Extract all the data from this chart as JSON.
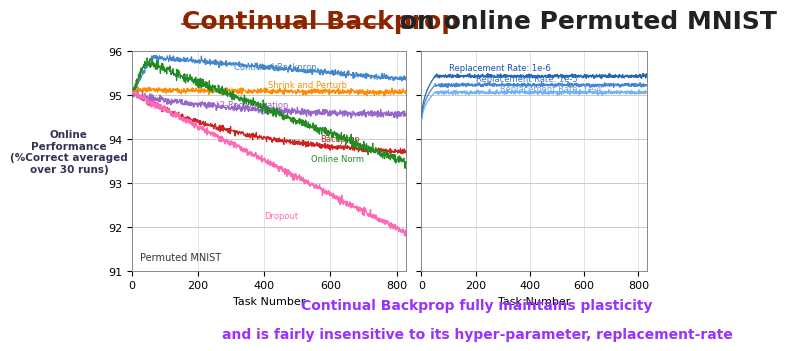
{
  "title_part1": "Continual Backprop",
  "title_part2": " on online Permuted MNIST",
  "title_color1": "#8B2500",
  "title_color2": "#222222",
  "title_fontsize": 18,
  "ylabel": "Online\nPerformance\n(%Correct averaged\nover 30 runs)",
  "xlabel": "Task Number",
  "ylim": [
    91,
    96
  ],
  "xlim": [
    0,
    830
  ],
  "yticks": [
    91,
    92,
    93,
    94,
    95,
    96
  ],
  "xticks": [
    0,
    200,
    400,
    600,
    800
  ],
  "subplot_label": "Permuted MNIST",
  "bottom_text_line1": "Continual Backprop fully maintains plasticity",
  "bottom_text_line2": "and is fairly insensitive to its hyper-parameter, replacement-rate",
  "bottom_text_color": "#9B30FF",
  "lines_left": {
    "continual_backprop": {
      "label": "Continual Backprop",
      "color": "#4488CC",
      "start": 95.05,
      "peak": 95.85,
      "peak_x": 60,
      "end": 95.35
    },
    "shrink_perturb": {
      "label": "Shrink and Perturb",
      "color": "#FF8C00",
      "start": 95.1,
      "end": 95.05
    },
    "backprop": {
      "label": "Backprop",
      "color": "#CC2222",
      "start": 95.05,
      "end": 93.7
    },
    "l2_reg": {
      "label": "L2-Regularization",
      "color": "#9966CC",
      "start": 95.0,
      "end": 94.55
    },
    "online_norm": {
      "label": "Online Norm",
      "color": "#228B22",
      "start": 95.0,
      "peak_x": 40,
      "peak": 95.75,
      "end": 93.45
    },
    "dropout": {
      "label": "Dropout",
      "color": "#FF69B4",
      "start": 95.05,
      "end": 91.85
    }
  },
  "lines_right": {
    "rate_1e6": {
      "label": "Replacement Rate: 1e-6",
      "color": "#1155AA",
      "value": 95.42
    },
    "rate_1e5": {
      "label": "Replacement Rate: 1e-5",
      "color": "#3377CC",
      "value": 95.22
    },
    "rate_1e4": {
      "label": "Replacement Rate: 1e-4",
      "color": "#66AAEE",
      "value": 95.05
    }
  },
  "bg_color": "#FFFFFF",
  "grid_color": "#CCCCCC"
}
